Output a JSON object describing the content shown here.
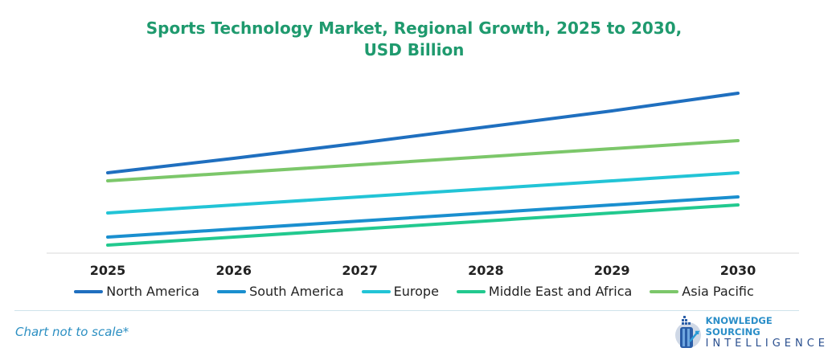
{
  "chart_data": {
    "type": "line",
    "title": "Sports Technology Market, Regional Growth, 2025 to 2030,",
    "subtitle": "USD Billion",
    "xlabel": "",
    "ylabel": "",
    "categories": [
      "2025",
      "2026",
      "2027",
      "2028",
      "2029",
      "2030"
    ],
    "ylim": [
      0,
      205
    ],
    "grid": false,
    "legend_position": "bottom",
    "series": [
      {
        "name": "North America",
        "color": "#1f6fbf",
        "values": [
          100,
          118,
          137,
          157,
          177,
          199
        ]
      },
      {
        "name": "South America",
        "color": "#1a8fcf",
        "values": [
          20,
          30,
          40,
          50,
          60,
          70
        ]
      },
      {
        "name": "Europe",
        "color": "#22c4d6",
        "values": [
          50,
          60,
          70,
          80,
          90,
          100
        ]
      },
      {
        "name": "Middle East and Africa",
        "color": "#22c98f",
        "values": [
          10,
          20,
          30,
          40,
          50,
          60
        ]
      },
      {
        "name": "Asia Pacific",
        "color": "#7cc76a",
        "values": [
          90,
          100,
          110,
          120,
          130,
          140
        ]
      }
    ]
  },
  "footnote": "Chart not to scale*",
  "logo": {
    "line1": "KNOWLEDGE SOURCING",
    "line2": "INTELLIGENCE"
  }
}
